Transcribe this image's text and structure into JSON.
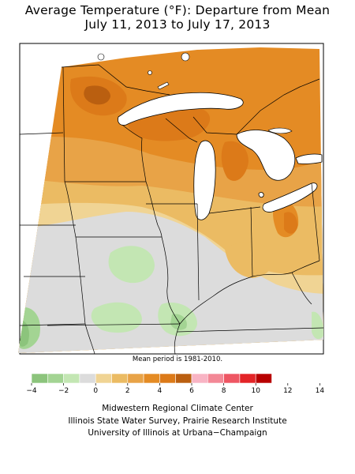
{
  "title": {
    "line1": "Average Temperature (°F): Departure from Mean",
    "line2": "July 11, 2013 to July 17, 2013"
  },
  "map": {
    "region": "Midwest",
    "mean_note": "Mean period is 1981-2010."
  },
  "legend": {
    "colors": [
      "#8cc47c",
      "#a3d493",
      "#c3e6b3",
      "#dcdcdc",
      "#f0d494",
      "#ebbb63",
      "#e8a347",
      "#e48b24",
      "#dc7a19",
      "#ba5f10",
      "#f8b4c4",
      "#f38896",
      "#ee5663",
      "#e32427",
      "#b80000"
    ],
    "tick_labels": [
      "−4",
      "−2",
      "0",
      "2",
      "4",
      "6",
      "8",
      "10",
      "12",
      "14"
    ]
  },
  "credits": {
    "line1": "Midwestern Regional Climate Center",
    "line2": "Illinois State Water Survey, Prairie Research Institute",
    "line3": "University of Illinois at Urbana−Champaign"
  }
}
